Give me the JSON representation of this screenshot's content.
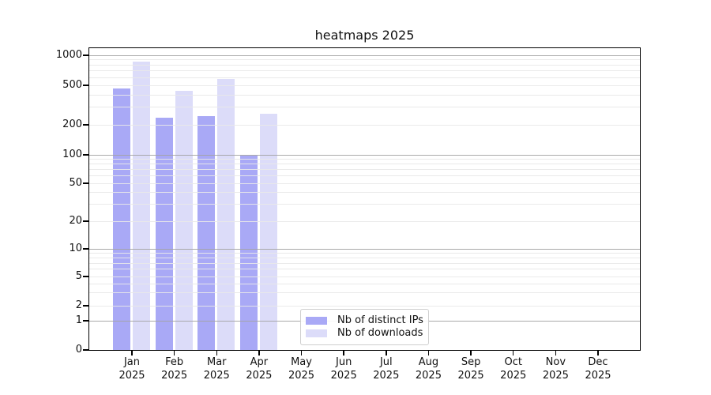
{
  "chart_data": {
    "type": "bar",
    "title": "heatmaps 2025",
    "categories": [
      "Jan 2025",
      "Feb 2025",
      "Mar 2025",
      "Apr 2025",
      "May 2025",
      "Jun 2025",
      "Jul 2025",
      "Aug 2025",
      "Sep 2025",
      "Oct 2025",
      "Nov 2025",
      "Dec 2025"
    ],
    "series": [
      {
        "name": "Nb of distinct IPs",
        "color": "#a9a9f6",
        "values": [
          465,
          236,
          245,
          100,
          0,
          0,
          0,
          0,
          0,
          0,
          0,
          0
        ]
      },
      {
        "name": "Nb of downloads",
        "color": "#dcdcf9",
        "values": [
          877,
          440,
          581,
          262,
          0,
          0,
          0,
          0,
          0,
          0,
          0,
          0
        ]
      }
    ],
    "xlabel": "",
    "ylabel": "",
    "yscale": "symlog",
    "ylim": [
      0,
      1200
    ],
    "yticks": [
      0,
      1,
      2,
      5,
      10,
      20,
      50,
      100,
      200,
      500,
      1000
    ],
    "grid": {
      "major": [
        1,
        10,
        100,
        1000
      ],
      "minor": [
        2,
        3,
        4,
        5,
        6,
        7,
        8,
        9,
        20,
        30,
        40,
        50,
        60,
        70,
        80,
        90,
        200,
        300,
        400,
        500,
        600,
        700,
        800,
        900
      ]
    },
    "grid_on": true,
    "legend_position": "lower center (inside axes)",
    "colors": {
      "background": "#ffffff",
      "spine": "#000000",
      "grid_major": "#a3a3a3",
      "grid_minor": "#e8e8e8",
      "text": "#111111",
      "legend_border": "#cfcfcf"
    }
  }
}
